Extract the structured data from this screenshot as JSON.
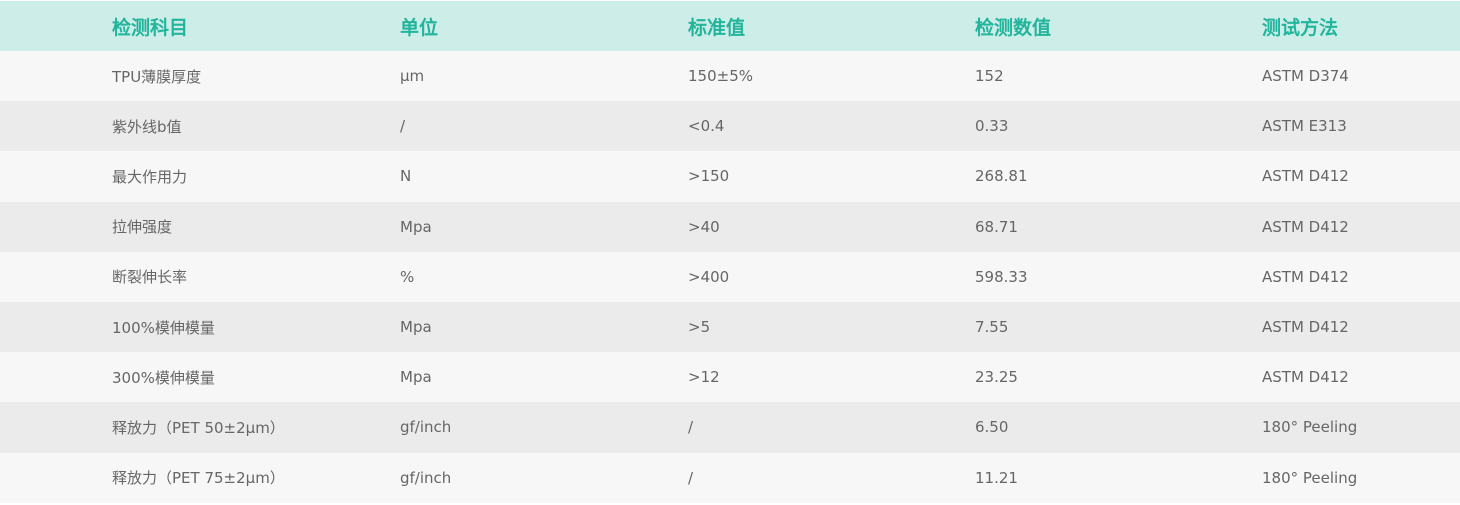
{
  "colors": {
    "header_bg": "#cdede9",
    "header_text": "#22b59c",
    "row_light": "#f7f7f7",
    "row_dark": "#ebebeb",
    "cell_text": "#666666"
  },
  "headers": [
    "检测科目",
    "单位",
    "标准值",
    "检测数值",
    "测试方法"
  ],
  "rows": [
    [
      "TPU薄膜厚度",
      "μm",
      "150±5%",
      "152",
      "ASTM D374"
    ],
    [
      "紫外线b值",
      "/",
      "<0.4",
      "0.33",
      "ASTM E313"
    ],
    [
      "最大作用力",
      "N",
      ">150",
      "268.81",
      "ASTM D412"
    ],
    [
      "拉伸强度",
      "Mpa",
      ">40",
      "68.71",
      "ASTM D412"
    ],
    [
      "断裂伸长率",
      "%",
      ">400",
      "598.33",
      "ASTM D412"
    ],
    [
      "100%模伸模量",
      "Mpa",
      ">5",
      "7.55",
      "ASTM D412"
    ],
    [
      "300%模伸模量",
      "Mpa",
      ">12",
      "23.25",
      "ASTM D412"
    ],
    [
      "释放力（PET 50±2μm）",
      "gf/inch",
      "/",
      "6.50",
      "180° Peeling"
    ],
    [
      "释放力（PET 75±2μm）",
      "gf/inch",
      "/",
      "11.21",
      "180° Peeling"
    ]
  ]
}
